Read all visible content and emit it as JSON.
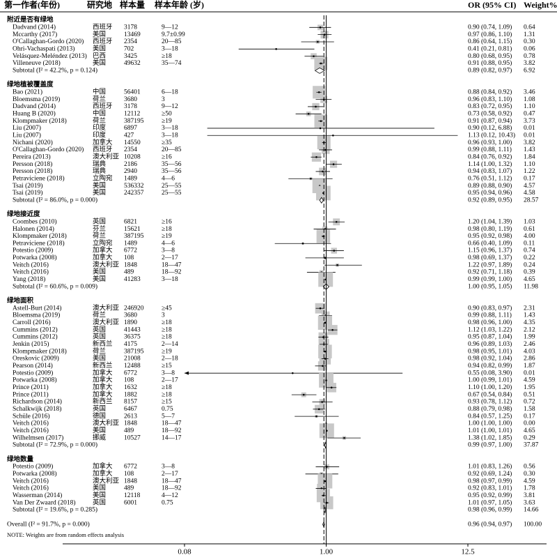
{
  "chart_data": {
    "type": "forest",
    "xscale": "log",
    "xlim": [
      0.08,
      12.5
    ],
    "xticks": [
      0.08,
      {
        "value": 1,
        "label": "1.00"
      },
      12.5
    ],
    "columns": [
      "第一作者(年份)",
      "研究地",
      "样本量",
      "样本年龄 (岁)",
      "OR (95% CI)",
      "Weight%"
    ],
    "groups": [
      {
        "name": "附近是否有绿地",
        "studies": [
          {
            "author": "Dadvand (2014)",
            "site": "西班牙",
            "n": 3178,
            "age": "9—12",
            "or": 0.9,
            "lo": 0.74,
            "hi": 1.09,
            "label": "0.90 (0.74, 1.09)",
            "weight": "0.64"
          },
          {
            "author": "Mccarthy (2017)",
            "site": "美国",
            "n": 13469,
            "age": "9.7±0.99",
            "or": 0.97,
            "lo": 0.86,
            "hi": 1.1,
            "label": "0.97 (0.86, 1.10)",
            "weight": "1.31"
          },
          {
            "author": "O'Callaghan-Gordo (2020)",
            "site": "西班牙",
            "n": 2354,
            "age": "20—85",
            "or": 0.86,
            "lo": 0.64,
            "hi": 1.15,
            "label": "0.86 (0.64, 1.15)",
            "weight": "0.30"
          },
          {
            "author": "Ohri-Vachaspati (2013)",
            "site": "美国",
            "n": 702,
            "age": "3—18",
            "or": 0.41,
            "lo": 0.21,
            "hi": 0.81,
            "label": "0.41 (0.21, 0.81)",
            "weight": "0.06"
          },
          {
            "author": "Velásquez-Meléndez (2013)",
            "site": "巴西",
            "n": 3425,
            "age": "≥18",
            "or": 0.8,
            "lo": 0.68,
            "hi": 0.95,
            "label": "0.80 (0.68, 0.95)",
            "weight": "0.78"
          },
          {
            "author": "Villeneuve (2018)",
            "site": "美国",
            "n": 49632,
            "age": "35—74",
            "or": 0.91,
            "lo": 0.88,
            "hi": 0.95,
            "label": "0.91 (0.88, 0.95)",
            "weight": "3.82"
          }
        ],
        "subtotal": {
          "text": "Subtotal  (I² = 42.2%, p = 0.124)",
          "or": 0.89,
          "lo": 0.82,
          "hi": 0.97,
          "label": "0.89 (0.82, 0.97)",
          "weight": "6.92"
        }
      },
      {
        "name": "绿地植被覆盖度",
        "studies": [
          {
            "author": "Bao (2021)",
            "site": "中国",
            "n": 56401,
            "age": "6—18",
            "or": 0.88,
            "lo": 0.84,
            "hi": 0.92,
            "label": "0.88 (0.84, 0.92)",
            "weight": "3.46"
          },
          {
            "author": "Bloemsma (2019)",
            "site": "荷兰",
            "n": 3680,
            "age": "3",
            "or": 0.96,
            "lo": 0.83,
            "hi": 1.1,
            "label": "0.96 (0.83, 1.10)",
            "weight": "1.08"
          },
          {
            "author": "Dadvand (2014)",
            "site": "西班牙",
            "n": 3178,
            "age": "9—12",
            "or": 0.83,
            "lo": 0.72,
            "hi": 0.95,
            "label": "0.83 (0.72, 0.95)",
            "weight": "1.10"
          },
          {
            "author": "Huang B (2020)",
            "site": "中国",
            "n": 12112,
            "age": "≥50",
            "or": 0.73,
            "lo": 0.58,
            "hi": 0.92,
            "label": "0.73 (0.58, 0.92)",
            "weight": "0.47"
          },
          {
            "author": "Klompmaker (2018)",
            "site": "荷兰",
            "n": 387195,
            "age": "≥19",
            "or": 0.91,
            "lo": 0.87,
            "hi": 0.94,
            "label": "0.91 (0.87, 0.94)",
            "weight": "3.73"
          },
          {
            "author": "Liu (2007)",
            "site": "印度",
            "n": 6897,
            "age": "3—18",
            "or": 0.9,
            "lo": 0.12,
            "hi": 6.88,
            "label": "0.90 (0.12, 6.88)",
            "weight": "0.01"
          },
          {
            "author": "Liu (2007)",
            "site": "印度",
            "n": 427,
            "age": "3—18",
            "or": 1.13,
            "lo": 0.12,
            "hi": 10.43,
            "label": "1.13 (0.12, 10.43)",
            "weight": "0.01"
          },
          {
            "author": "Nichani (2020)",
            "site": "加拿大",
            "n": 14550,
            "age": "≥35",
            "or": 0.96,
            "lo": 0.93,
            "hi": 1.0,
            "label": "0.96 (0.93, 1.00)",
            "weight": "3.82"
          },
          {
            "author": "O'Callaghan-Gordo (2020)",
            "site": "西班牙",
            "n": 2354,
            "age": "20—85",
            "or": 0.99,
            "lo": 0.88,
            "hi": 1.11,
            "label": "0.99 (0.88, 1.11)",
            "weight": "1.43"
          },
          {
            "author": "Pereira (2013)",
            "site": "澳大利亚",
            "n": 10208,
            "age": "≥16",
            "or": 0.84,
            "lo": 0.76,
            "hi": 0.92,
            "label": "0.84 (0.76, 0.92)",
            "weight": "1.84"
          },
          {
            "author": "Persson (2018)",
            "site": "瑞典",
            "n": 2186,
            "age": "35—56",
            "or": 1.14,
            "lo": 1.0,
            "hi": 1.32,
            "label": "1.14 (1.00, 1.32)",
            "weight": "1.10"
          },
          {
            "author": "Persson (2018)",
            "site": "瑞典",
            "n": 2940,
            "age": "35—56",
            "or": 0.94,
            "lo": 0.83,
            "hi": 1.07,
            "label": "0.94 (0.83, 1.07)",
            "weight": "1.22"
          },
          {
            "author": "Petraviciene (2018)",
            "site": "立陶宛",
            "n": 1489,
            "age": "4—6",
            "or": 0.76,
            "lo": 0.51,
            "hi": 1.12,
            "label": "0.76 (0.51, 1.12)",
            "weight": "0.17"
          },
          {
            "author": "Tsai (2019)",
            "site": "美国",
            "n": 536332,
            "age": "25—55",
            "or": 0.89,
            "lo": 0.88,
            "hi": 0.9,
            "label": "0.89 (0.88, 0.90)",
            "weight": "4.57"
          },
          {
            "author": "Tsai (2019)",
            "site": "美国",
            "n": 242357,
            "age": "25—55",
            "or": 0.95,
            "lo": 0.94,
            "hi": 0.96,
            "label": "0.95 (0.94, 0.96)",
            "weight": "4.58"
          }
        ],
        "subtotal": {
          "text": "Subtotal  (I² = 86.0%, p = 0.000)",
          "or": 0.92,
          "lo": 0.89,
          "hi": 0.95,
          "label": "0.92 (0.89, 0.95)",
          "weight": "28.57"
        }
      },
      {
        "name": "绿地接近度",
        "studies": [
          {
            "author": "Coombes (2010)",
            "site": "英国",
            "n": 6821,
            "age": "≥16",
            "or": 1.2,
            "lo": 1.04,
            "hi": 1.39,
            "label": "1.20 (1.04, 1.39)",
            "weight": "1.03"
          },
          {
            "author": "Halonen (2014)",
            "site": "芬兰",
            "n": 15621,
            "age": "≥18",
            "or": 0.98,
            "lo": 0.8,
            "hi": 1.19,
            "label": "0.98 (0.80, 1.19)",
            "weight": "0.61"
          },
          {
            "author": "Klompmaker (2018)",
            "site": "荷兰",
            "n": 387195,
            "age": "≥19",
            "or": 0.95,
            "lo": 0.92,
            "hi": 0.98,
            "label": "0.95 (0.92, 0.98)",
            "weight": "4.00"
          },
          {
            "author": "Petraviciene (2018)",
            "site": "立陶宛",
            "n": 1489,
            "age": "4—6",
            "or": 0.66,
            "lo": 0.4,
            "hi": 1.09,
            "label": "0.66 (0.40, 1.09)",
            "weight": "0.11"
          },
          {
            "author": "Potestio (2009)",
            "site": "加拿大",
            "n": 6772,
            "age": "3—8",
            "or": 1.15,
            "lo": 0.96,
            "hi": 1.37,
            "label": "1.15 (0.96, 1.37)",
            "weight": "0.74"
          },
          {
            "author": "Potwarka (2008)",
            "site": "加拿大",
            "n": 108,
            "age": "2—17",
            "or": 0.98,
            "lo": 0.69,
            "hi": 1.37,
            "label": "0.98 (0.69, 1.37)",
            "weight": "0.22"
          },
          {
            "author": "Veitch (2016)",
            "site": "澳大利亚",
            "n": 1848,
            "age": "18—47",
            "or": 1.22,
            "lo": 0.97,
            "hi": 1.89,
            "label": "1.22 (0.97, 1.89)",
            "weight": "0.24"
          },
          {
            "author": "Veitch (2016)",
            "site": "美国",
            "n": 489,
            "age": "18—92",
            "or": 0.92,
            "lo": 0.71,
            "hi": 1.18,
            "label": "0.92 (0.71, 1.18)",
            "weight": "0.39"
          },
          {
            "author": "Yang (2018)",
            "site": "美国",
            "n": 41283,
            "age": "3—18",
            "or": 0.99,
            "lo": 0.99,
            "hi": 1.0,
            "label": "0.99 (0.99, 1.00)",
            "weight": "4.65"
          }
        ],
        "subtotal": {
          "text": "Subtotal  (I² = 60.6%, p = 0.009)",
          "or": 1.0,
          "lo": 0.95,
          "hi": 1.05,
          "label": "1.00 (0.95, 1.05)",
          "weight": "11.98"
        }
      },
      {
        "name": "绿地面积",
        "studies": [
          {
            "author": "Astell-Burt (2014)",
            "site": "澳大利亚",
            "n": 246920,
            "age": "≥45",
            "or": 0.9,
            "lo": 0.83,
            "hi": 0.97,
            "label": "0.90 (0.83, 0.97)",
            "weight": "2.31"
          },
          {
            "author": "Bloemsma (2019)",
            "site": "荷兰",
            "n": 3680,
            "age": "3",
            "or": 0.99,
            "lo": 0.88,
            "hi": 1.11,
            "label": "0.99 (0.88, 1.11)",
            "weight": "1.43"
          },
          {
            "author": "Carroll (2016)",
            "site": "澳大利亚",
            "n": 1890,
            "age": "≥18",
            "or": 0.98,
            "lo": 0.96,
            "hi": 1.0,
            "label": "0.98 (0.96, 1.00)",
            "weight": "4.35"
          },
          {
            "author": "Cummins (2012)",
            "site": "英国",
            "n": 41443,
            "age": "≥18",
            "or": 1.12,
            "lo": 1.03,
            "hi": 1.22,
            "label": "1.12 (1.03, 1.22)",
            "weight": "2.12"
          },
          {
            "author": "Cummins (2012)",
            "site": "英国",
            "n": 36375,
            "age": "≥18",
            "or": 0.95,
            "lo": 0.87,
            "hi": 1.04,
            "label": "0.95 (0.87, 1.04)",
            "weight": "1.99"
          },
          {
            "author": "Jenkin (2015)",
            "site": "新西兰",
            "n": 4175,
            "age": "2—14",
            "or": 0.96,
            "lo": 0.89,
            "hi": 1.03,
            "label": "0.96 (0.89, 1.03)",
            "weight": "2.46"
          },
          {
            "author": "Klompmaker (2018)",
            "site": "荷兰",
            "n": 387195,
            "age": "≥19",
            "or": 0.98,
            "lo": 0.95,
            "hi": 1.01,
            "label": "0.98 (0.95, 1.01)",
            "weight": "4.03"
          },
          {
            "author": "Oreskovic (2009)",
            "site": "美国",
            "n": 21008,
            "age": "2—18",
            "or": 0.98,
            "lo": 0.92,
            "hi": 1.04,
            "label": "0.98 (0.92, 1.04)",
            "weight": "2.86"
          },
          {
            "author": "Pearson (2014)",
            "site": "新西兰",
            "n": 12488,
            "age": "≥15",
            "or": 0.94,
            "lo": 0.82,
            "hi": 0.99,
            "label": "0.94 (0.82, 0.99)",
            "weight": "1.87"
          },
          {
            "author": "Potestio (2009)",
            "site": "加拿大",
            "n": 6772,
            "age": "3—8",
            "or": 0.55,
            "lo": 0.08,
            "hi": 3.9,
            "label": "0.55 (0.08, 3.90)",
            "weight": "0.01"
          },
          {
            "author": "Potwarka (2008)",
            "site": "加拿大",
            "n": 108,
            "age": "2—17",
            "or": 1.0,
            "lo": 0.99,
            "hi": 1.01,
            "label": "1.00 (0.99, 1.01)",
            "weight": "4.59"
          },
          {
            "author": "Prince (2011)",
            "site": "加拿大",
            "n": 1632,
            "age": "≥18",
            "or": 1.1,
            "lo": 1.0,
            "hi": 1.2,
            "label": "1.10 (1.00, 1.20)",
            "weight": "1.95"
          },
          {
            "author": "Prince (2011)",
            "site": "加拿大",
            "n": 1882,
            "age": "≥18",
            "or": 0.67,
            "lo": 0.54,
            "hi": 0.84,
            "label": "0.67 (0.54, 0.84)",
            "weight": "0.51"
          },
          {
            "author": "Richardson (2014)",
            "site": "新西兰",
            "n": 8157,
            "age": "≥15",
            "or": 0.93,
            "lo": 0.78,
            "hi": 1.12,
            "label": "0.93 (0.78, 1.12)",
            "weight": "0.72"
          },
          {
            "author": "Schalkwijk (2018)",
            "site": "英国",
            "n": 6467,
            "age": "0.75",
            "or": 0.88,
            "lo": 0.79,
            "hi": 0.98,
            "label": "0.88 (0.79, 0.98)",
            "weight": "1.58"
          },
          {
            "author": "Schüle (2016)",
            "site": "德国",
            "n": 2613,
            "age": "5—7",
            "or": 0.84,
            "lo": 0.57,
            "hi": 1.25,
            "label": "0.84 (0.57, 1.25)",
            "weight": "0.17"
          },
          {
            "author": "Veitch (2016)",
            "site": "澳大利亚",
            "n": 1848,
            "age": "18—47",
            "or": 1.0,
            "lo": 1.0,
            "hi": 1.0,
            "label": "1.00 (1.00, 1.00)",
            "weight": "0.00"
          },
          {
            "author": "Veitch (2016)",
            "site": "美国",
            "n": 489,
            "age": "18—92",
            "or": 1.01,
            "lo": 1.0,
            "hi": 1.01,
            "label": "1.01 (1.00, 1.01)",
            "weight": "4.65"
          },
          {
            "author": "Wilhelmsen (2017)",
            "site": "挪威",
            "n": 10527,
            "age": "14—17",
            "or": 1.38,
            "lo": 1.02,
            "hi": 1.85,
            "label": "1.38 (1.02, 1.85)",
            "weight": "0.29"
          }
        ],
        "subtotal": {
          "text": "Subtotal  (I² = 72.9%, p = 0.000)",
          "or": 0.99,
          "lo": 0.97,
          "hi": 1.0,
          "label": "0.99 (0.97, 1.00)",
          "weight": "37.87"
        }
      },
      {
        "name": "绿地数量",
        "studies": [
          {
            "author": "Potestio (2009)",
            "site": "加拿大",
            "n": 6772,
            "age": "3—8",
            "or": 1.01,
            "lo": 0.83,
            "hi": 1.26,
            "label": "1.01 (0.83, 1.26)",
            "weight": "0.56"
          },
          {
            "author": "Potwarka (2008)",
            "site": "加拿大",
            "n": 108,
            "age": "2—17",
            "or": 0.92,
            "lo": 0.69,
            "hi": 1.24,
            "label": "0.92 (0.69, 1.24)",
            "weight": "0.30"
          },
          {
            "author": "Veitch (2016)",
            "site": "澳大利亚",
            "n": 1848,
            "age": "18—47",
            "or": 0.98,
            "lo": 0.97,
            "hi": 0.99,
            "label": "0.98 (0.97, 0.99)",
            "weight": "4.59"
          },
          {
            "author": "Veitch (2016)",
            "site": "美国",
            "n": 489,
            "age": "18—92",
            "or": 0.92,
            "lo": 0.83,
            "hi": 1.01,
            "label": "0.92 (0.83, 1.01)",
            "weight": "1.78"
          },
          {
            "author": "Wasserman (2014)",
            "site": "美国",
            "n": 12118,
            "age": "4—12",
            "or": 0.95,
            "lo": 0.92,
            "hi": 0.99,
            "label": "0.95 (0.92, 0.99)",
            "weight": "3.81"
          },
          {
            "author": "Van Der Zwaard (2018)",
            "site": "英国",
            "n": 6001,
            "age": "0.75",
            "or": 1.01,
            "lo": 0.97,
            "hi": 1.05,
            "label": "1.01 (0.97, 1.05)",
            "weight": "3.63"
          }
        ],
        "subtotal": {
          "text": "Subtotal  (I² = 19.6%, p = 0.285)",
          "or": 0.98,
          "lo": 0.96,
          "hi": 0.99,
          "label": "0.98 (0.96, 0.99)",
          "weight": "14.66"
        }
      }
    ],
    "overall": {
      "text": "Overall  (I² = 91.7%, p = 0.000)",
      "or": 0.96,
      "lo": 0.94,
      "hi": 0.97,
      "label": "0.96 (0.94, 0.97)",
      "weight": "100.00"
    },
    "note": "NOTE: Weights are from random effects analysis"
  }
}
